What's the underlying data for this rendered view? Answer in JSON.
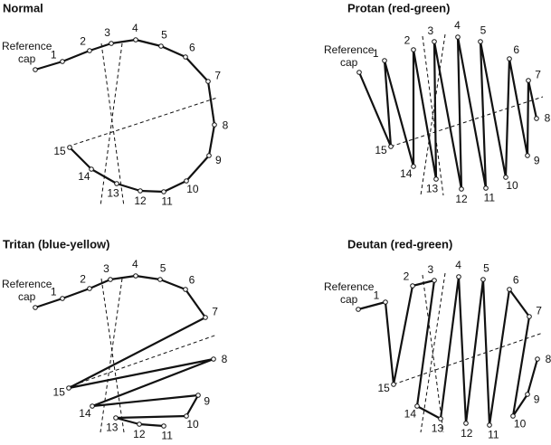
{
  "panels": [
    {
      "title": "Normal",
      "reference_label": [
        "Reference",
        "cap"
      ],
      "caps": [
        "1",
        "2",
        "3",
        "4",
        "5",
        "6",
        "7",
        "8",
        "9",
        "10",
        "11",
        "12",
        "13",
        "14",
        "15"
      ]
    },
    {
      "title": "Protan (red-green)",
      "reference_label": [
        "Reference",
        "cap"
      ],
      "caps": [
        "1",
        "2",
        "3",
        "4",
        "5",
        "6",
        "7",
        "8",
        "9",
        "10",
        "11",
        "12",
        "13",
        "14",
        "15"
      ]
    },
    {
      "title": "Tritan (blue-yellow)",
      "reference_label": [
        "Reference",
        "cap"
      ],
      "caps": [
        "1",
        "2",
        "3",
        "4",
        "5",
        "6",
        "7",
        "8",
        "9",
        "10",
        "11",
        "12",
        "13",
        "14",
        "15"
      ]
    },
    {
      "title": "Deutan (red-green)",
      "reference_label": [
        "Reference",
        "cap"
      ],
      "caps": [
        "1",
        "2",
        "3",
        "4",
        "5",
        "6",
        "7",
        "8",
        "9",
        "10",
        "11",
        "12",
        "13",
        "14",
        "15"
      ]
    }
  ]
}
